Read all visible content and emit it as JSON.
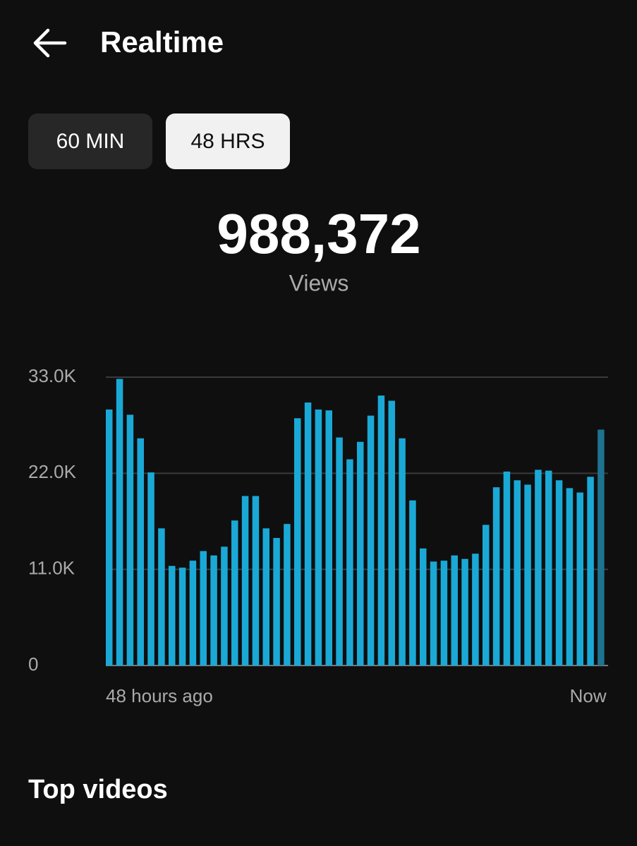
{
  "header": {
    "title": "Realtime"
  },
  "tabs": [
    {
      "label": "60 MIN",
      "selected": false
    },
    {
      "label": "48 HRS",
      "selected": true
    }
  ],
  "summary": {
    "total": "988,372",
    "label": "Views"
  },
  "chart_data": {
    "type": "bar",
    "categories": [
      "48 hours ago",
      null,
      null,
      null,
      null,
      null,
      null,
      null,
      null,
      null,
      null,
      null,
      null,
      null,
      null,
      null,
      null,
      null,
      null,
      null,
      null,
      null,
      null,
      null,
      null,
      null,
      null,
      null,
      null,
      null,
      null,
      null,
      null,
      null,
      null,
      null,
      null,
      null,
      null,
      null,
      null,
      null,
      null,
      null,
      null,
      null,
      null,
      "Now"
    ],
    "values": [
      29300,
      32800,
      28700,
      26000,
      22100,
      15700,
      11400,
      11200,
      12000,
      13100,
      12600,
      13600,
      16600,
      19400,
      19400,
      15700,
      14600,
      16200,
      28300,
      30100,
      29300,
      29200,
      26100,
      23600,
      25600,
      28600,
      30900,
      30300,
      26000,
      18900,
      13400,
      11900,
      12000,
      12600,
      12200,
      12800,
      16100,
      20400,
      22200,
      21200,
      20700,
      22400,
      22300,
      21200,
      20300,
      19800,
      21600,
      27000
    ],
    "color": "#1aa9d6",
    "current_color": "#1d7390",
    "ylim": [
      0,
      33000
    ],
    "yticks": [
      0,
      {
        "value": 11000,
        "label": "11.0K"
      },
      {
        "value": 22000,
        "label": "22.0K"
      },
      {
        "value": 33000,
        "label": "33.0K"
      }
    ],
    "grid": true
  },
  "section": {
    "title": "Top videos"
  }
}
